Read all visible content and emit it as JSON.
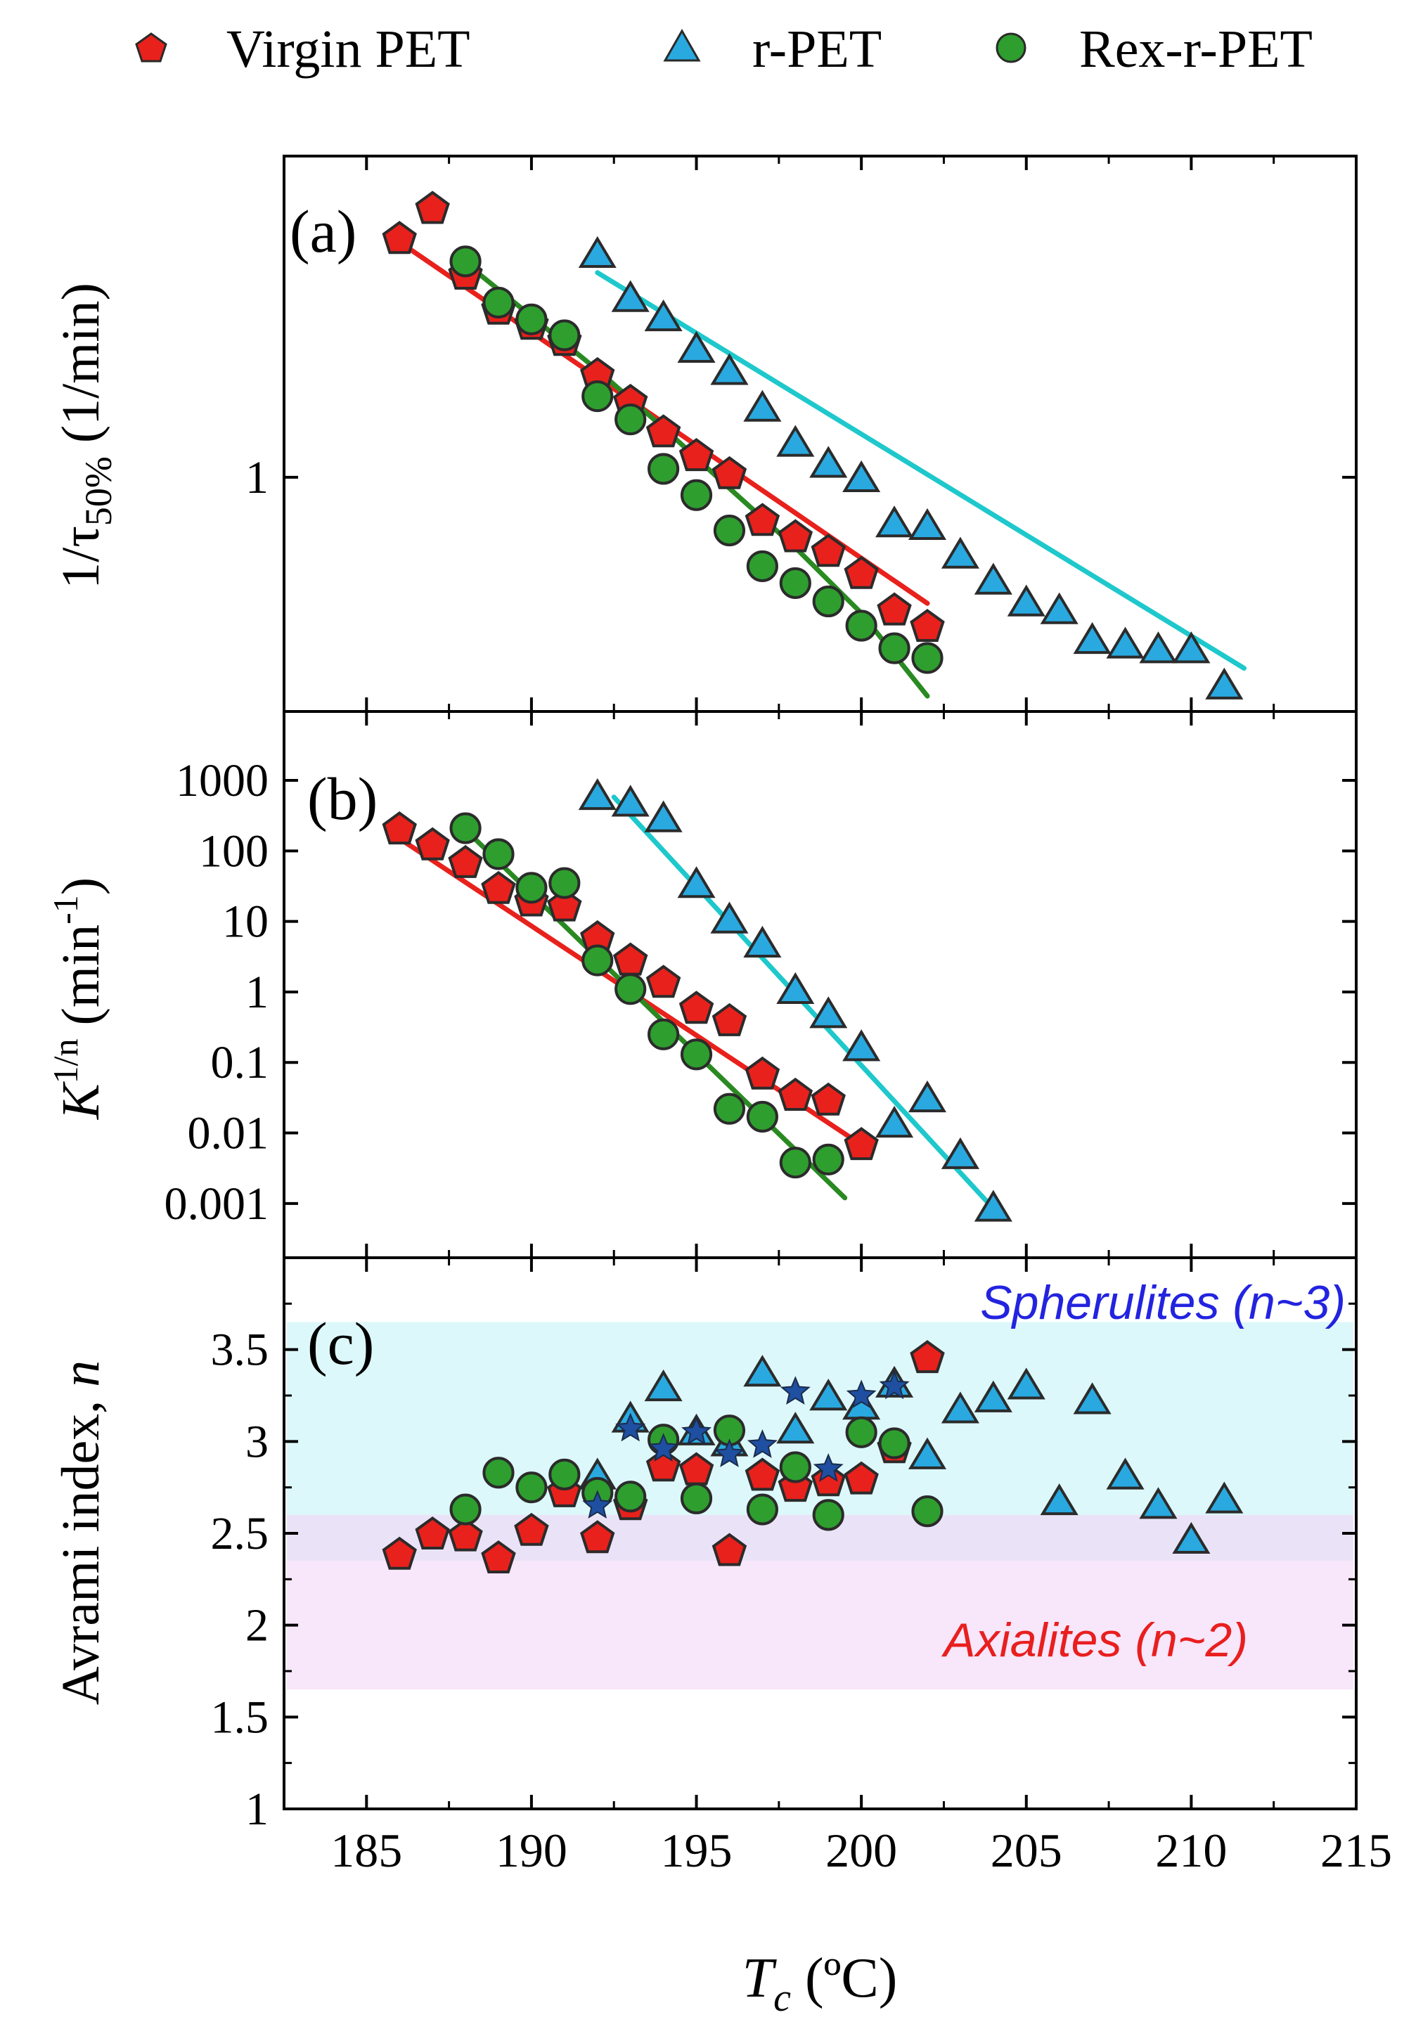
{
  "legend": [
    {
      "label": "Virgin PET",
      "marker": "pentagon",
      "color": "#e8211c"
    },
    {
      "label": "r-PET",
      "marker": "triangle",
      "color": "#29a9e0"
    },
    {
      "label": "Rex-r-PET",
      "marker": "circle",
      "color": "#2e9e2e"
    }
  ],
  "xaxis": {
    "label_main": "T",
    "label_sub": "c",
    "label_unit": " (ºC)"
  },
  "chart_data": [
    {
      "panel": "(a)",
      "type": "scatter",
      "ylabel_prefix": "1/τ",
      "ylabel_sub": "50%",
      "ylabel_suffix": " (1/min)",
      "yscale": "log",
      "xlim": [
        182.5,
        215
      ],
      "ylim": [
        0.335,
        4.48
      ],
      "xticks": [
        185,
        190,
        195,
        200,
        205,
        210,
        215
      ],
      "yticks": [
        {
          "v": 1,
          "label": "1"
        }
      ],
      "series": [
        {
          "name": "Virgin PET",
          "marker": "pentagon",
          "color": "#e8211c",
          "x": [
            186,
            187,
            188,
            189,
            190,
            191,
            192,
            193,
            194,
            195,
            196,
            197,
            198,
            199,
            200,
            201,
            202
          ],
          "y": [
            3.06,
            3.52,
            2.59,
            2.2,
            2.05,
            1.9,
            1.62,
            1.43,
            1.24,
            1.11,
            1.02,
            0.82,
            0.76,
            0.71,
            0.64,
            0.54,
            0.5
          ],
          "fit": {
            "color": "#e8211c",
            "x": [
              186,
              202
            ],
            "y": [
              3.0,
              0.555
            ]
          }
        },
        {
          "name": "r-PET",
          "marker": "triangle",
          "color": "#29a9e0",
          "x": [
            192,
            193,
            194,
            195,
            196,
            197,
            198,
            199,
            200,
            201,
            202,
            203,
            204,
            205,
            206,
            207,
            208,
            209,
            210,
            211
          ],
          "y": [
            2.85,
            2.32,
            2.12,
            1.83,
            1.65,
            1.39,
            1.18,
            1.07,
            1.0,
            0.81,
            0.8,
            0.7,
            0.62,
            0.56,
            0.54,
            0.47,
            0.46,
            0.45,
            0.45,
            0.38
          ],
          "fit": {
            "color": "#1ec8cc",
            "x": [
              192,
              211.6
            ],
            "y": [
              2.6,
              0.41
            ]
          }
        },
        {
          "name": "Rex-r-PET",
          "marker": "circle",
          "color": "#2e9e2e",
          "x": [
            188,
            189,
            190,
            191,
            192,
            193,
            194,
            195,
            196,
            197,
            198,
            199,
            200,
            201,
            202
          ],
          "y": [
            2.74,
            2.26,
            2.09,
            1.94,
            1.46,
            1.31,
            1.04,
            0.92,
            0.78,
            0.66,
            0.61,
            0.56,
            0.5,
            0.45,
            0.43
          ],
          "fit": {
            "color": "#2a8a22",
            "x": [
              188,
              190,
              192,
              194,
              196,
              198,
              200,
              202
            ],
            "y": [
              2.72,
              2.12,
              1.65,
              1.26,
              0.95,
              0.72,
              0.53,
              0.36
            ]
          }
        }
      ]
    },
    {
      "panel": "(b)",
      "type": "scatter",
      "ylabel_main": "K",
      "ylabel_sup1": "1/n",
      "ylabel_mid": " (min",
      "ylabel_sup2": "-1",
      "ylabel_end": ")",
      "yscale": "log",
      "xlim": [
        182.5,
        215
      ],
      "ylim": [
        0.00017,
        9500
      ],
      "yticks": [
        {
          "v": 1000,
          "label": "1000"
        },
        {
          "v": 100,
          "label": "100"
        },
        {
          "v": 10,
          "label": "10"
        },
        {
          "v": 1,
          "label": "1"
        },
        {
          "v": 0.1,
          "label": "0.1"
        },
        {
          "v": 0.01,
          "label": "0.01"
        },
        {
          "v": 0.001,
          "label": "0.001"
        }
      ],
      "series": [
        {
          "name": "Virgin PET",
          "marker": "pentagon",
          "color": "#e8211c",
          "x": [
            186,
            187,
            188,
            189,
            190,
            191,
            192,
            193,
            194,
            195,
            196,
            197,
            198,
            199,
            200
          ],
          "y": [
            210,
            125,
            70,
            30,
            20,
            17,
            6.0,
            2.9,
            1.4,
            0.6,
            0.4,
            0.07,
            0.035,
            0.03,
            0.007
          ],
          "fit": {
            "color": "#e8211c",
            "x": [
              186,
              200
            ],
            "y": [
              150,
              0.0068
            ]
          }
        },
        {
          "name": "r-PET",
          "marker": "triangle",
          "color": "#29a9e0",
          "x": [
            192,
            193,
            194,
            195,
            196,
            197,
            198,
            199,
            200,
            201,
            202,
            203,
            204
          ],
          "y": [
            620,
            500,
            300,
            35,
            11,
            5,
            1.1,
            0.5,
            0.17,
            0.014,
            0.032,
            0.005,
            0.0009
          ],
          "fit": {
            "color": "#1ec8cc",
            "x": [
              192.5,
              204
            ],
            "y": [
              580,
              0.00085
            ]
          }
        },
        {
          "name": "Rex-r-PET",
          "marker": "circle",
          "color": "#2e9e2e",
          "x": [
            188,
            189,
            190,
            191,
            192,
            193,
            194,
            195,
            196,
            197,
            198,
            199
          ],
          "y": [
            210,
            90,
            30,
            35,
            2.8,
            1.1,
            0.25,
            0.13,
            0.022,
            0.017,
            0.0038,
            0.0042
          ],
          "fit": {
            "color": "#2a8a22",
            "x": [
              188,
              199.5
            ],
            "y": [
              200,
              0.0012
            ]
          }
        }
      ]
    },
    {
      "panel": "(c)",
      "type": "scatter",
      "ylabel_prefix": "Avrami index, ",
      "ylabel_italic": "n",
      "yscale": "linear",
      "xlim": [
        182.5,
        215
      ],
      "ylim": [
        1,
        4.0
      ],
      "yticks": [
        {
          "v": 3.5,
          "label": "3.5"
        },
        {
          "v": 3,
          "label": "3"
        },
        {
          "v": 2.5,
          "label": "2.5"
        },
        {
          "v": 2,
          "label": "2"
        },
        {
          "v": 1.5,
          "label": "1.5"
        },
        {
          "v": 1,
          "label": "1"
        }
      ],
      "bands": [
        {
          "name": "Spherulites (n~3)",
          "from": 2.35,
          "to": 3.65,
          "color": "#d2f6f8",
          "opacity": 0.75,
          "label_color": "#2323e0"
        },
        {
          "name": "Axialites (n~2)",
          "from": 1.65,
          "to": 2.6,
          "color": "#f4d6f6",
          "opacity": 0.6,
          "label_color": "#e81f1f"
        }
      ],
      "series": [
        {
          "name": "Virgin PET",
          "marker": "pentagon",
          "color": "#e8211c",
          "x": [
            186,
            187,
            188,
            189,
            190,
            191,
            192,
            193,
            194,
            195,
            196,
            197,
            198,
            199,
            200,
            201,
            202
          ],
          "y": [
            2.39,
            2.5,
            2.49,
            2.37,
            2.52,
            2.73,
            2.48,
            2.66,
            2.87,
            2.85,
            2.41,
            2.82,
            2.76,
            2.79,
            2.8,
            2.97,
            3.46
          ]
        },
        {
          "name": "r-PET",
          "marker": "triangle",
          "color": "#29a9e0",
          "x": [
            192,
            193,
            194,
            195,
            196,
            197,
            198,
            199,
            200,
            201,
            202,
            203,
            204,
            205,
            206,
            207,
            208,
            209,
            210,
            211
          ],
          "y": [
            2.82,
            3.13,
            3.3,
            3.06,
            3.0,
            3.38,
            3.07,
            3.25,
            3.2,
            3.32,
            2.93,
            3.18,
            3.24,
            3.31,
            2.68,
            3.23,
            2.82,
            2.66,
            2.47,
            2.69
          ]
        },
        {
          "name": "Rex-r-PET",
          "marker": "circle",
          "color": "#2e9e2e",
          "x": [
            188,
            189,
            190,
            191,
            192,
            193,
            194,
            195,
            196,
            197,
            198,
            199,
            200,
            201,
            202
          ],
          "y": [
            2.63,
            2.83,
            2.75,
            2.82,
            2.72,
            2.7,
            3.01,
            2.69,
            3.06,
            2.63,
            2.86,
            2.6,
            3.05,
            2.99,
            2.62
          ]
        },
        {
          "name": "star markers",
          "marker": "star",
          "color": "#1f4fa0",
          "x": [
            192,
            193,
            194,
            195,
            196,
            197,
            198,
            199,
            200,
            201
          ],
          "y": [
            2.65,
            3.07,
            2.96,
            3.05,
            2.93,
            2.98,
            3.27,
            2.85,
            3.25,
            3.3
          ]
        }
      ]
    }
  ]
}
